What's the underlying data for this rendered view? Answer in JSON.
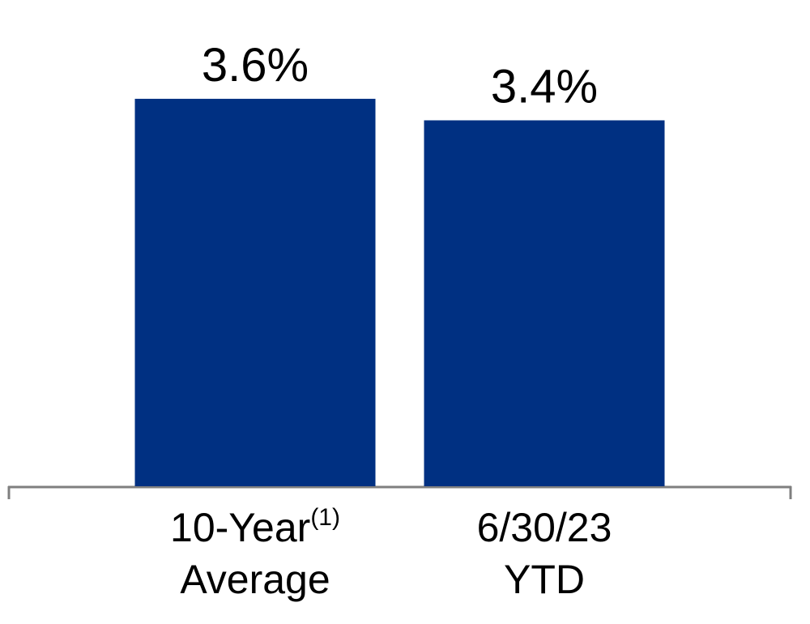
{
  "chart_data": {
    "type": "bar",
    "categories": [
      [
        "10-Year",
        "Average"
      ],
      [
        "6/30/23",
        "YTD"
      ]
    ],
    "category_notes": [
      "(1)",
      null
    ],
    "values": [
      3.6,
      3.4
    ],
    "value_labels": [
      "3.6%",
      "3.4%"
    ],
    "color": "#003082"
  }
}
